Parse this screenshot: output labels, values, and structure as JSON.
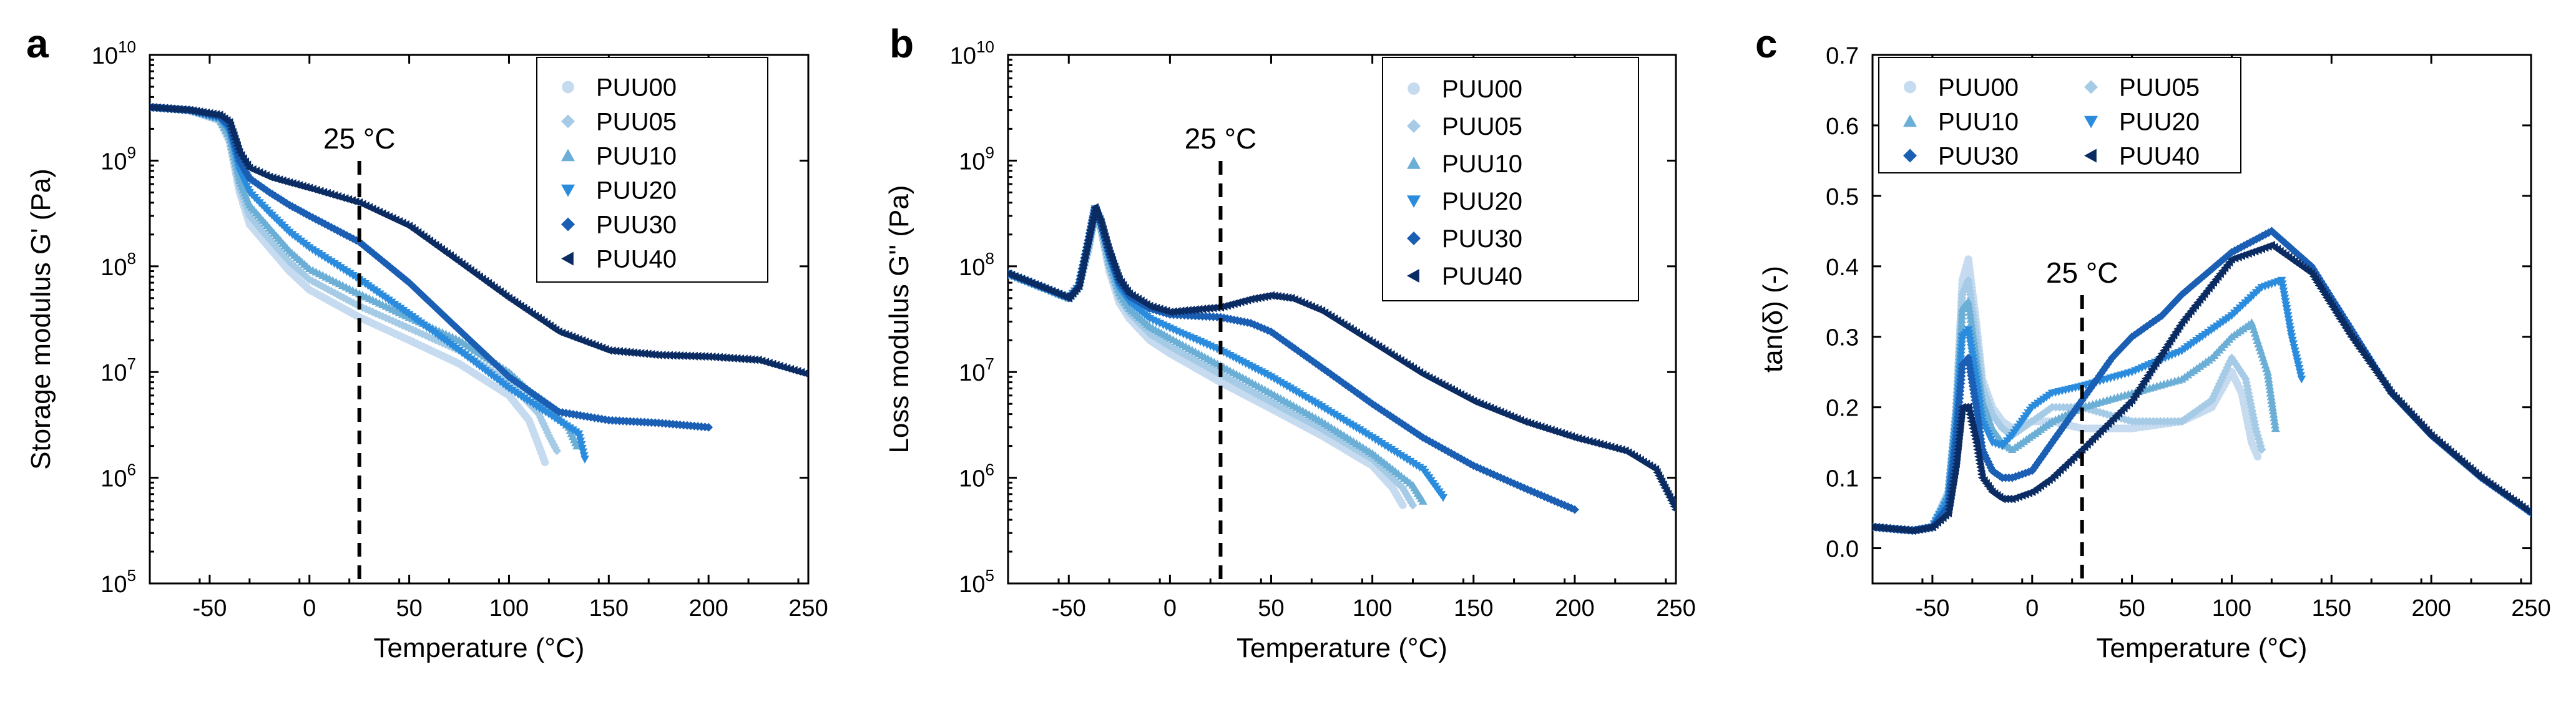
{
  "chart_data": [
    {
      "type": "scatter",
      "panel": "a",
      "title": "",
      "xlabel": "Temperature (°C)",
      "ylabel": "Storage modulus G'  (Pa)",
      "xscale": "linear",
      "yscale": "log",
      "xlim": [
        -80,
        250
      ],
      "ylim": [
        100000,
        10000000000
      ],
      "xticks": [
        "-50",
        "0",
        "50",
        "100",
        "150",
        "200",
        "250"
      ],
      "xtick_values": [
        -50,
        0,
        50,
        100,
        150,
        200,
        250
      ],
      "ytick_exponents": [
        5,
        6,
        7,
        8,
        9,
        10
      ],
      "ytick_base": "10",
      "reference_line": {
        "x": 25,
        "label": "25 °C"
      },
      "legend": {
        "placement": "top-right",
        "columns": 1
      },
      "series": [
        {
          "name": "PUU00",
          "color": "#c6dbef",
          "marker": "circle",
          "x": [
            -80,
            -60,
            -45,
            -40,
            -35,
            -30,
            -20,
            -10,
            0,
            25,
            50,
            75,
            100,
            110,
            115,
            118
          ],
          "y": [
            3200000000.0,
            3000000000.0,
            2400000000.0,
            1500000000.0,
            500000000.0,
            250000000.0,
            150000000.0,
            90000000.0,
            60000000.0,
            33000000.0,
            20000000.0,
            12000000.0,
            6000000.0,
            3500000.0,
            2000000.0,
            1400000.0
          ]
        },
        {
          "name": "PUU05",
          "color": "#a6cbe6",
          "marker": "diamond",
          "x": [
            -80,
            -60,
            -45,
            -40,
            -35,
            -30,
            -20,
            -10,
            0,
            25,
            50,
            75,
            100,
            115,
            120,
            124
          ],
          "y": [
            3200000000.0,
            3000000000.0,
            2400000000.0,
            1600000000.0,
            550000000.0,
            300000000.0,
            180000000.0,
            110000000.0,
            75000000.0,
            42000000.0,
            26000000.0,
            16000000.0,
            8000000.0,
            4000000.0,
            2500000.0,
            1800000.0
          ]
        },
        {
          "name": "PUU10",
          "color": "#6baed6",
          "marker": "triangle-up",
          "x": [
            -80,
            -60,
            -45,
            -40,
            -35,
            -30,
            -20,
            -10,
            0,
            25,
            50,
            75,
            100,
            120,
            130,
            134
          ],
          "y": [
            3200000000.0,
            3000000000.0,
            2500000000.0,
            1700000000.0,
            650000000.0,
            380000000.0,
            230000000.0,
            140000000.0,
            95000000.0,
            55000000.0,
            33000000.0,
            20000000.0,
            10000000.0,
            4500000.0,
            3000000.0,
            2000000.0
          ]
        },
        {
          "name": "PUU20",
          "color": "#2b8cde",
          "marker": "triangle-down",
          "x": [
            -80,
            -60,
            -45,
            -40,
            -35,
            -30,
            -20,
            -10,
            0,
            25,
            50,
            75,
            100,
            120,
            135,
            138
          ],
          "y": [
            3200000000.0,
            3000000000.0,
            2500000000.0,
            1900000000.0,
            800000000.0,
            500000000.0,
            320000000.0,
            210000000.0,
            150000000.0,
            75000000.0,
            35000000.0,
            16000000.0,
            7000000.0,
            4000000.0,
            2600000.0,
            1500000.0
          ]
        },
        {
          "name": "PUU30",
          "color": "#1a5fb4",
          "marker": "diamond",
          "x": [
            -80,
            -60,
            -45,
            -40,
            -35,
            -30,
            -20,
            -10,
            0,
            25,
            50,
            75,
            100,
            125,
            150,
            175,
            200
          ],
          "y": [
            3200000000.0,
            3000000000.0,
            2600000000.0,
            2100000000.0,
            1000000000.0,
            680000000.0,
            500000000.0,
            380000000.0,
            300000000.0,
            170000000.0,
            70000000.0,
            25000000.0,
            9000000.0,
            4200000.0,
            3500000.0,
            3300000.0,
            3000000.0
          ]
        },
        {
          "name": "PUU40",
          "color": "#0b2b63",
          "marker": "triangle-left",
          "x": [
            -80,
            -60,
            -45,
            -40,
            -35,
            -30,
            -20,
            -10,
            0,
            25,
            50,
            75,
            100,
            125,
            150,
            175,
            200,
            225,
            250
          ],
          "y": [
            3200000000.0,
            3000000000.0,
            2700000000.0,
            2300000000.0,
            1200000000.0,
            850000000.0,
            700000000.0,
            620000000.0,
            550000000.0,
            400000000.0,
            240000000.0,
            110000000.0,
            50000000.0,
            24000000.0,
            16000000.0,
            14500000.0,
            14000000.0,
            13000000.0,
            9500000.0
          ]
        }
      ]
    },
    {
      "type": "scatter",
      "panel": "b",
      "title": "",
      "xlabel": "Temperature (°C)",
      "ylabel": "Loss modulus G''  (Pa)",
      "xscale": "linear",
      "yscale": "log",
      "xlim": [
        -80,
        250
      ],
      "ylim": [
        100000,
        10000000000
      ],
      "xticks": [
        "-50",
        "0",
        "50",
        "100",
        "150",
        "200",
        "250"
      ],
      "xtick_values": [
        -50,
        0,
        50,
        100,
        150,
        200,
        250
      ],
      "ytick_exponents": [
        5,
        6,
        7,
        8,
        9,
        10
      ],
      "ytick_base": "10",
      "reference_line": {
        "x": 25,
        "label": "25 °C"
      },
      "legend": {
        "placement": "top-right",
        "columns": 1
      },
      "series": [
        {
          "name": "PUU00",
          "color": "#c6dbef",
          "marker": "circle",
          "x": [
            -80,
            -60,
            -50,
            -45,
            -40,
            -37,
            -34,
            -30,
            -25,
            -20,
            -10,
            0,
            25,
            50,
            75,
            100,
            110,
            115
          ],
          "y": [
            85000000.0,
            60000000.0,
            50000000.0,
            65000000.0,
            150000000.0,
            320000000.0,
            220000000.0,
            90000000.0,
            45000000.0,
            32000000.0,
            20000000.0,
            15000000.0,
            8000000.0,
            4500000.0,
            2500000.0,
            1300000.0,
            800000.0,
            550000.0
          ]
        },
        {
          "name": "PUU05",
          "color": "#a6cbe6",
          "marker": "diamond",
          "x": [
            -80,
            -60,
            -50,
            -45,
            -40,
            -37,
            -34,
            -30,
            -25,
            -20,
            -10,
            0,
            25,
            50,
            75,
            100,
            115,
            120
          ],
          "y": [
            85000000.0,
            60000000.0,
            50000000.0,
            65000000.0,
            160000000.0,
            330000000.0,
            230000000.0,
            100000000.0,
            50000000.0,
            36000000.0,
            23000000.0,
            17500000.0,
            9500000.0,
            5200000.0,
            2900000.0,
            1500000.0,
            800000.0,
            550000.0
          ]
        },
        {
          "name": "PUU10",
          "color": "#6baed6",
          "marker": "triangle-up",
          "x": [
            -80,
            -60,
            -50,
            -45,
            -40,
            -37,
            -34,
            -30,
            -25,
            -20,
            -10,
            0,
            25,
            50,
            75,
            100,
            120,
            125
          ],
          "y": [
            85000000.0,
            60000000.0,
            50000000.0,
            65000000.0,
            170000000.0,
            340000000.0,
            240000000.0,
            110000000.0,
            56000000.0,
            40000000.0,
            27000000.0,
            21000000.0,
            11500000.0,
            6300000.0,
            3400000.0,
            1700000.0,
            850000.0,
            600000.0
          ]
        },
        {
          "name": "PUU20",
          "color": "#2b8cde",
          "marker": "triangle-down",
          "x": [
            -80,
            -60,
            -50,
            -45,
            -40,
            -37,
            -34,
            -30,
            -25,
            -20,
            -10,
            0,
            25,
            50,
            75,
            100,
            125,
            135
          ],
          "y": [
            85000000.0,
            60000000.0,
            50000000.0,
            65000000.0,
            180000000.0,
            350000000.0,
            250000000.0,
            120000000.0,
            62000000.0,
            46000000.0,
            32000000.0,
            26000000.0,
            16000000.0,
            9000000.0,
            4700000.0,
            2400000.0,
            1200000.0,
            650000.0
          ]
        },
        {
          "name": "PUU30",
          "color": "#1a5fb4",
          "marker": "diamond",
          "x": [
            -80,
            -60,
            -50,
            -45,
            -40,
            -37,
            -34,
            -30,
            -25,
            -20,
            -10,
            0,
            25,
            40,
            50,
            75,
            100,
            125,
            150,
            175,
            200
          ],
          "y": [
            85000000.0,
            60000000.0,
            50000000.0,
            65000000.0,
            180000000.0,
            350000000.0,
            250000000.0,
            130000000.0,
            70000000.0,
            52000000.0,
            40000000.0,
            35000000.0,
            33000000.0,
            29000000.0,
            24000000.0,
            11000000.0,
            5000000.0,
            2400000.0,
            1300000.0,
            800000.0,
            500000.0
          ]
        },
        {
          "name": "PUU40",
          "color": "#0b2b63",
          "marker": "triangle-left",
          "x": [
            -80,
            -60,
            -50,
            -45,
            -40,
            -37,
            -34,
            -30,
            -25,
            -20,
            -10,
            0,
            25,
            40,
            50,
            60,
            75,
            100,
            125,
            150,
            175,
            200,
            225,
            240,
            250
          ],
          "y": [
            85000000.0,
            60000000.0,
            50000000.0,
            65000000.0,
            190000000.0,
            360000000.0,
            260000000.0,
            140000000.0,
            75000000.0,
            55000000.0,
            42000000.0,
            37000000.0,
            41000000.0,
            49000000.0,
            53000000.0,
            50000000.0,
            38000000.0,
            19000000.0,
            9500000.0,
            5300000.0,
            3400000.0,
            2400000.0,
            1800000.0,
            1200000.0,
            500000.0
          ]
        }
      ]
    },
    {
      "type": "scatter",
      "panel": "c",
      "title": "",
      "xlabel": "Temperature (°C)",
      "ylabel": "tan(δ)    (-)",
      "xscale": "linear",
      "yscale": "linear",
      "xlim": [
        -80,
        250
      ],
      "ylim": [
        -0.05,
        0.7
      ],
      "xticks": [
        "-50",
        "0",
        "50",
        "100",
        "150",
        "200",
        "250"
      ],
      "xtick_values": [
        -50,
        0,
        50,
        100,
        150,
        200,
        250
      ],
      "yticks": [
        "0.0",
        "0.1",
        "0.2",
        "0.3",
        "0.4",
        "0.5",
        "0.6",
        "0.7"
      ],
      "ytick_values": [
        0,
        0.1,
        0.2,
        0.3,
        0.4,
        0.5,
        0.6,
        0.7
      ],
      "reference_line": {
        "x": 25,
        "label": "25 °C"
      },
      "legend": {
        "placement": "top-left",
        "columns": 2
      },
      "series": [
        {
          "name": "PUU00",
          "color": "#c6dbef",
          "marker": "circle",
          "x": [
            -80,
            -60,
            -50,
            -42,
            -38,
            -35,
            -32,
            -28,
            -25,
            -20,
            -15,
            -10,
            0,
            10,
            25,
            50,
            75,
            90,
            100,
            105,
            110,
            113
          ],
          "y": [
            0.03,
            0.025,
            0.03,
            0.08,
            0.2,
            0.38,
            0.41,
            0.32,
            0.24,
            0.2,
            0.18,
            0.17,
            0.18,
            0.18,
            0.17,
            0.17,
            0.18,
            0.2,
            0.25,
            0.22,
            0.15,
            0.13
          ]
        },
        {
          "name": "PUU05",
          "color": "#a6cbe6",
          "marker": "diamond",
          "x": [
            -80,
            -60,
            -50,
            -42,
            -38,
            -35,
            -32,
            -28,
            -25,
            -20,
            -15,
            -10,
            0,
            10,
            25,
            50,
            75,
            90,
            100,
            107,
            112,
            115
          ],
          "y": [
            0.03,
            0.025,
            0.03,
            0.08,
            0.2,
            0.36,
            0.38,
            0.3,
            0.23,
            0.19,
            0.17,
            0.16,
            0.18,
            0.2,
            0.2,
            0.18,
            0.18,
            0.21,
            0.27,
            0.24,
            0.17,
            0.14
          ]
        },
        {
          "name": "PUU10",
          "color": "#6baed6",
          "marker": "triangle-up",
          "x": [
            -80,
            -60,
            -50,
            -42,
            -38,
            -35,
            -32,
            -28,
            -25,
            -20,
            -15,
            -10,
            0,
            10,
            25,
            50,
            75,
            90,
            100,
            110,
            118,
            122
          ],
          "y": [
            0.03,
            0.025,
            0.03,
            0.08,
            0.2,
            0.34,
            0.35,
            0.27,
            0.21,
            0.17,
            0.15,
            0.14,
            0.16,
            0.18,
            0.2,
            0.22,
            0.24,
            0.27,
            0.3,
            0.32,
            0.25,
            0.17
          ]
        },
        {
          "name": "PUU20",
          "color": "#2b8cde",
          "marker": "triangle-down",
          "x": [
            -80,
            -60,
            -50,
            -42,
            -38,
            -35,
            -32,
            -28,
            -25,
            -20,
            -15,
            -10,
            0,
            10,
            25,
            50,
            75,
            100,
            115,
            125,
            130,
            135
          ],
          "y": [
            0.03,
            0.025,
            0.03,
            0.07,
            0.18,
            0.3,
            0.31,
            0.24,
            0.18,
            0.15,
            0.145,
            0.16,
            0.2,
            0.22,
            0.23,
            0.25,
            0.28,
            0.33,
            0.37,
            0.38,
            0.3,
            0.24
          ]
        },
        {
          "name": "PUU30",
          "color": "#1a5fb4",
          "marker": "diamond",
          "x": [
            -80,
            -60,
            -50,
            -42,
            -38,
            -35,
            -32,
            -28,
            -25,
            -20,
            -15,
            -10,
            0,
            10,
            25,
            40,
            50,
            65,
            75,
            100,
            120,
            140,
            160,
            180,
            200,
            225,
            250
          ],
          "y": [
            0.03,
            0.025,
            0.03,
            0.06,
            0.16,
            0.26,
            0.27,
            0.2,
            0.14,
            0.11,
            0.1,
            0.1,
            0.11,
            0.15,
            0.21,
            0.27,
            0.3,
            0.33,
            0.36,
            0.42,
            0.45,
            0.4,
            0.31,
            0.22,
            0.16,
            0.1,
            0.05
          ]
        },
        {
          "name": "PUU40",
          "color": "#0b2b63",
          "marker": "triangle-left",
          "x": [
            -80,
            -60,
            -50,
            -42,
            -38,
            -35,
            -32,
            -28,
            -25,
            -20,
            -15,
            -10,
            0,
            10,
            25,
            50,
            75,
            100,
            120,
            140,
            160,
            180,
            200,
            225,
            250
          ],
          "y": [
            0.03,
            0.025,
            0.03,
            0.05,
            0.12,
            0.2,
            0.2,
            0.15,
            0.1,
            0.08,
            0.07,
            0.07,
            0.08,
            0.1,
            0.14,
            0.21,
            0.32,
            0.41,
            0.43,
            0.39,
            0.3,
            0.22,
            0.16,
            0.1,
            0.05
          ]
        }
      ]
    }
  ]
}
